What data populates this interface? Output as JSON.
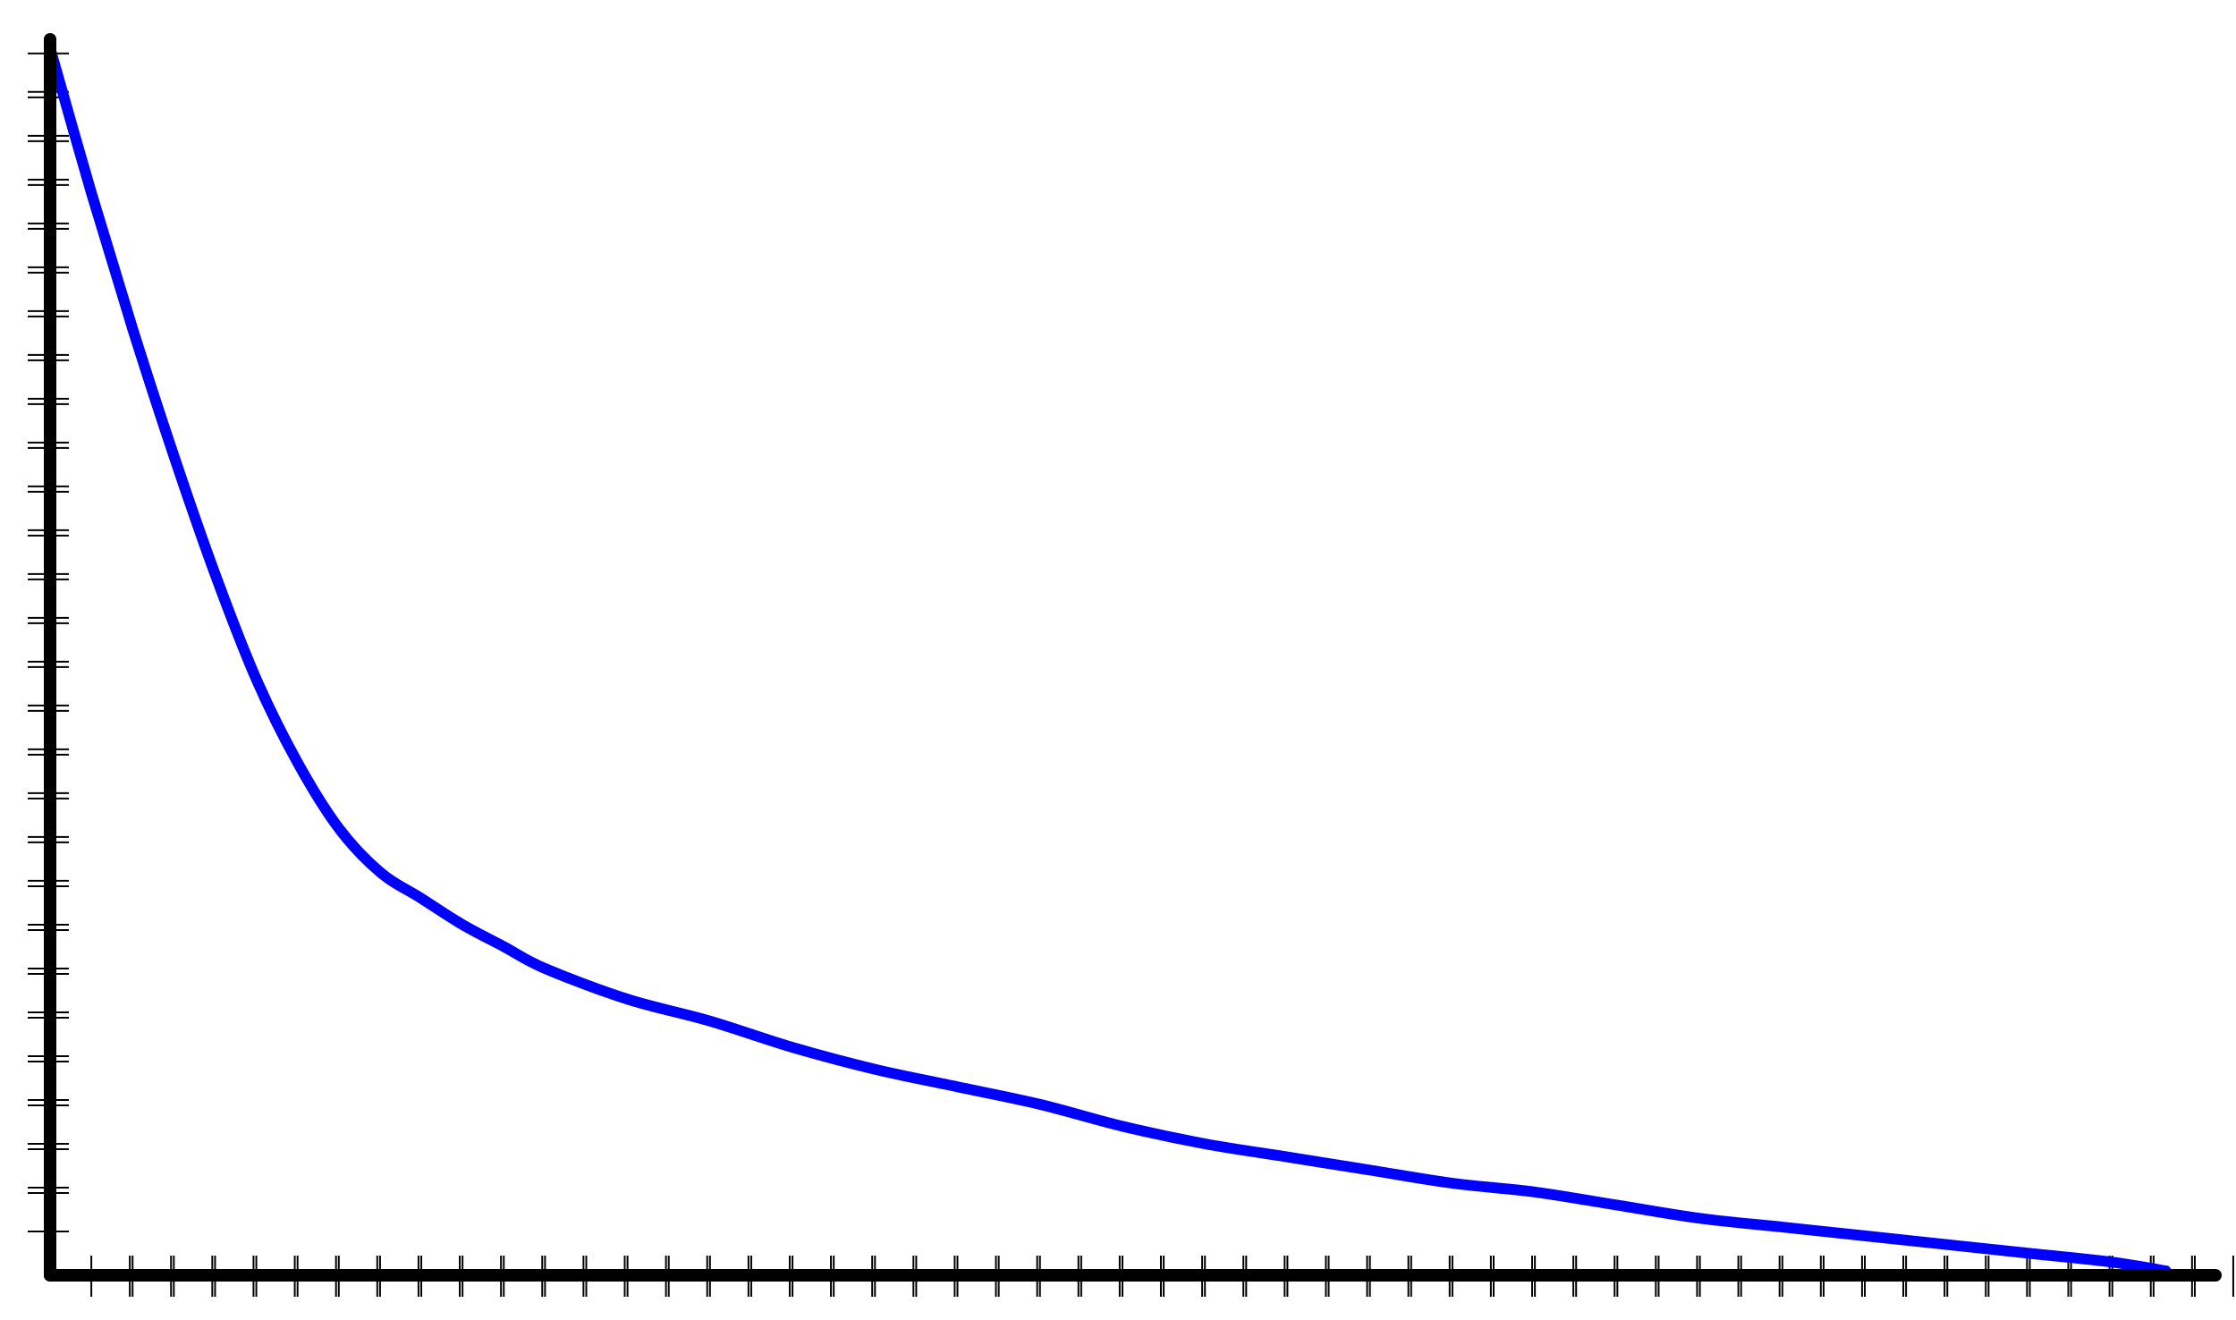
{
  "chart_data": {
    "type": "line",
    "title": "",
    "xlabel": "",
    "ylabel": "",
    "grid": false,
    "xlim": [
      0,
      52.5
    ],
    "ylim": [
      0,
      28.2
    ],
    "x_ticks": [
      1,
      2,
      3,
      4,
      5,
      6,
      7,
      8,
      9,
      10,
      11,
      12,
      13,
      14,
      15,
      16,
      17,
      18,
      19,
      20,
      21,
      22,
      23,
      24,
      25,
      26,
      27,
      28,
      29,
      30,
      31,
      32,
      33,
      34,
      35,
      36,
      37,
      38,
      39,
      40,
      41,
      42,
      43,
      44,
      45,
      46,
      47,
      48,
      49,
      50,
      51,
      52
    ],
    "y_ticks": [
      1,
      2,
      3,
      4,
      5,
      6,
      7,
      8,
      9,
      10,
      11,
      12,
      13,
      14,
      15,
      16,
      17,
      18,
      19,
      20,
      21,
      22,
      23,
      24,
      25,
      26,
      27
    ],
    "series": [
      {
        "color": "#0000ff",
        "x": [
          0,
          1,
          2,
          3,
          4,
          5,
          6,
          7,
          8,
          9,
          10,
          11,
          12,
          14,
          16,
          18,
          20,
          22,
          24,
          26,
          28,
          30,
          32,
          34,
          36,
          38,
          40,
          42,
          44,
          46,
          48,
          50,
          51.3
        ],
        "y": [
          28.0,
          24.7,
          21.6,
          18.7,
          16.0,
          13.6,
          11.7,
          10.2,
          9.2,
          8.6,
          8.0,
          7.5,
          7.0,
          6.3,
          5.8,
          5.2,
          4.7,
          4.3,
          3.9,
          3.4,
          3.0,
          2.7,
          2.4,
          2.1,
          1.9,
          1.6,
          1.3,
          1.1,
          0.9,
          0.7,
          0.5,
          0.3,
          0.1
        ]
      }
    ]
  }
}
